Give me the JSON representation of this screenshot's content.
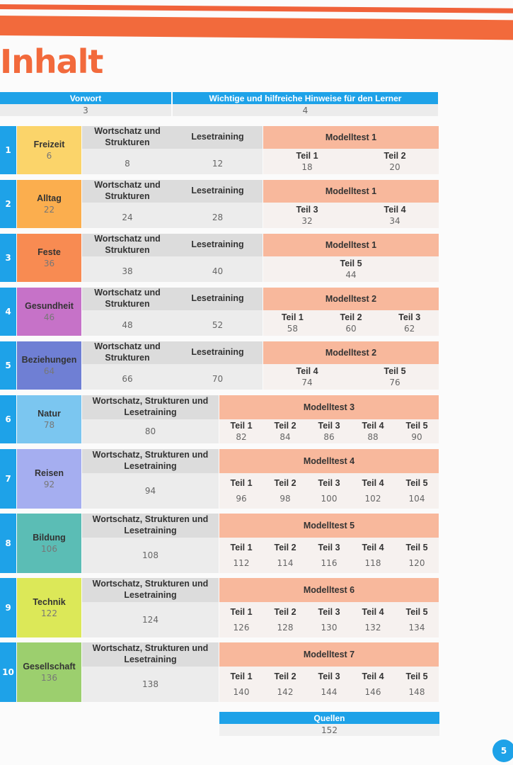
{
  "title": "Inhalt",
  "intro": [
    {
      "label": "Vorwort",
      "page": "3"
    },
    {
      "label": "Wichtige und hilfreiche Hinweise für den Lerner",
      "page": "4"
    }
  ],
  "chapters": [
    {
      "num": "1",
      "topic": "Freizeit",
      "page": "6",
      "color": "#fbd46a",
      "type": "A",
      "cols": [
        {
          "label": "Wortschatz und Strukturen",
          "page": "8"
        },
        {
          "label": "Lesetraining",
          "page": "12"
        }
      ],
      "test": "Modelltest 1",
      "teile": [
        {
          "label": "Teil 1",
          "page": "18"
        },
        {
          "label": "Teil 2",
          "page": "20"
        }
      ]
    },
    {
      "num": "2",
      "topic": "Alltag",
      "page": "22",
      "color": "#fbae4e",
      "type": "A",
      "cols": [
        {
          "label": "Wortschatz und Strukturen",
          "page": "24"
        },
        {
          "label": "Lesetraining",
          "page": "28"
        }
      ],
      "test": "Modelltest 1",
      "teile": [
        {
          "label": "Teil 3",
          "page": "32"
        },
        {
          "label": "Teil 4",
          "page": "34"
        }
      ]
    },
    {
      "num": "3",
      "topic": "Feste",
      "page": "36",
      "color": "#f88b52",
      "type": "A",
      "cols": [
        {
          "label": "Wortschatz und Strukturen",
          "page": "38"
        },
        {
          "label": "Lesetraining",
          "page": "40"
        }
      ],
      "test": "Modelltest 1",
      "teile": [
        {
          "label": "Teil 5",
          "page": "44"
        }
      ]
    },
    {
      "num": "4",
      "topic": "Gesundheit",
      "page": "46",
      "color": "#c672c8",
      "type": "A",
      "cols": [
        {
          "label": "Wortschatz und Strukturen",
          "page": "48"
        },
        {
          "label": "Lesetraining",
          "page": "52"
        }
      ],
      "test": "Modelltest 2",
      "teile": [
        {
          "label": "Teil 1",
          "page": "58"
        },
        {
          "label": "Teil 2",
          "page": "60"
        },
        {
          "label": "Teil 3",
          "page": "62"
        }
      ]
    },
    {
      "num": "5",
      "topic": "Beziehungen",
      "page": "64",
      "color": "#6f7fd4",
      "type": "A",
      "cols": [
        {
          "label": "Wortschatz und Strukturen",
          "page": "66"
        },
        {
          "label": "Lesetraining",
          "page": "70"
        }
      ],
      "test": "Modelltest 2",
      "teile": [
        {
          "label": "Teil 4",
          "page": "74"
        },
        {
          "label": "Teil 5",
          "page": "76"
        }
      ]
    },
    {
      "num": "6",
      "topic": "Natur",
      "page": "78",
      "color": "#7bc6f0",
      "type": "B",
      "cols": [
        {
          "label": "Wortschatz, Strukturen und Lesetraining",
          "page": "80"
        }
      ],
      "test": "Modelltest 3",
      "teile": [
        {
          "label": "Teil 1",
          "page": "82"
        },
        {
          "label": "Teil 2",
          "page": "84"
        },
        {
          "label": "Teil 3",
          "page": "86"
        },
        {
          "label": "Teil 4",
          "page": "88"
        },
        {
          "label": "Teil 5",
          "page": "90"
        }
      ]
    },
    {
      "num": "7",
      "topic": "Reisen",
      "page": "92",
      "color": "#a5aef0",
      "type": "B",
      "cols": [
        {
          "label": "Wortschatz, Strukturen und Lesetraining",
          "page": "94"
        }
      ],
      "test": "Modelltest 4",
      "teile": [
        {
          "label": "Teil 1",
          "page": "96"
        },
        {
          "label": "Teil 2",
          "page": "98"
        },
        {
          "label": "Teil 3",
          "page": "100"
        },
        {
          "label": "Teil 4",
          "page": "102"
        },
        {
          "label": "Teil 5",
          "page": "104"
        }
      ]
    },
    {
      "num": "8",
      "topic": "Bildung",
      "page": "106",
      "color": "#5bbdb5",
      "type": "B",
      "cols": [
        {
          "label": "Wortschatz, Strukturen und Lesetraining",
          "page": "108"
        }
      ],
      "test": "Modelltest 5",
      "teile": [
        {
          "label": "Teil 1",
          "page": "112"
        },
        {
          "label": "Teil 2",
          "page": "114"
        },
        {
          "label": "Teil 3",
          "page": "116"
        },
        {
          "label": "Teil 4",
          "page": "118"
        },
        {
          "label": "Teil 5",
          "page": "120"
        }
      ]
    },
    {
      "num": "9",
      "topic": "Technik",
      "page": "122",
      "color": "#dce858",
      "type": "B",
      "cols": [
        {
          "label": "Wortschatz, Strukturen und Lesetraining",
          "page": "124"
        }
      ],
      "test": "Modelltest 6",
      "teile": [
        {
          "label": "Teil 1",
          "page": "126"
        },
        {
          "label": "Teil 2",
          "page": "128"
        },
        {
          "label": "Teil 3",
          "page": "130"
        },
        {
          "label": "Teil 4",
          "page": "132"
        },
        {
          "label": "Teil 5",
          "page": "134"
        }
      ]
    },
    {
      "num": "10",
      "topic": "Gesellschaft",
      "page": "136",
      "color": "#9ccf6e",
      "type": "B",
      "cols": [
        {
          "label": "Wortschatz, Strukturen und Lesetraining",
          "page": "138"
        }
      ],
      "test": "Modelltest 7",
      "teile": [
        {
          "label": "Teil 1",
          "page": "140"
        },
        {
          "label": "Teil 2",
          "page": "142"
        },
        {
          "label": "Teil 3",
          "page": "144"
        },
        {
          "label": "Teil 4",
          "page": "146"
        },
        {
          "label": "Teil 5",
          "page": "148"
        }
      ]
    }
  ],
  "sources": {
    "label": "Quellen",
    "page": "152"
  },
  "page_number": "5"
}
